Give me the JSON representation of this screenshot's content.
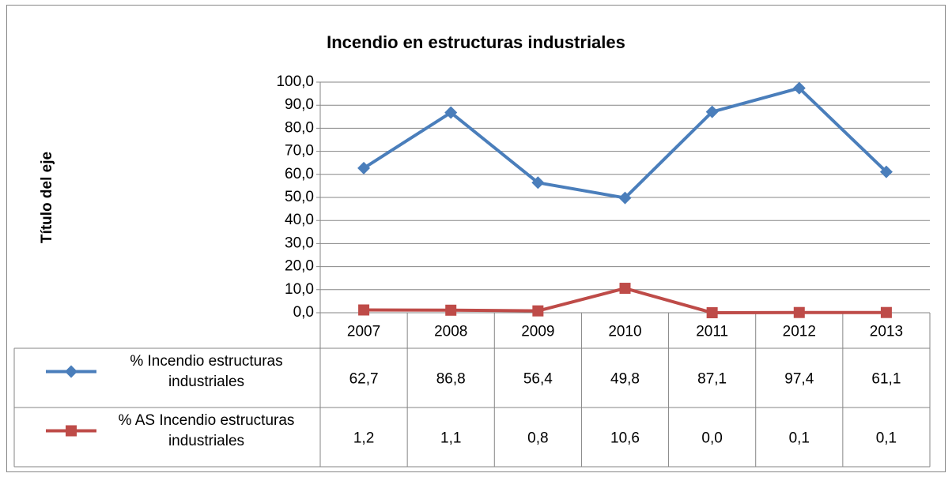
{
  "chart_data": {
    "type": "line",
    "title": "Incendio en estructuras industriales",
    "y_label": "Título del eje",
    "categories": [
      "2007",
      "2008",
      "2009",
      "2010",
      "2011",
      "2012",
      "2013"
    ],
    "series": [
      {
        "name": "% Incendio estructuras industriales",
        "color": "#4a7ebb",
        "marker": "diamond",
        "values": [
          62.7,
          86.8,
          56.4,
          49.8,
          87.1,
          97.4,
          61.1
        ],
        "value_labels": [
          "62,7",
          "86,8",
          "56,4",
          "49,8",
          "87,1",
          "97,4",
          "61,1"
        ]
      },
      {
        "name": "% AS Incendio estructuras industriales",
        "color": "#be4b48",
        "marker": "square",
        "values": [
          1.2,
          1.1,
          0.8,
          10.6,
          0.0,
          0.1,
          0.1
        ],
        "value_labels": [
          "1,2",
          "1,1",
          "0,8",
          "10,6",
          "0,0",
          "0,1",
          "0,1"
        ]
      }
    ],
    "ylim": [
      0,
      100
    ],
    "yticks": [
      {
        "value": 0,
        "label": "0,0"
      },
      {
        "value": 10,
        "label": "10,0"
      },
      {
        "value": 20,
        "label": "20,0"
      },
      {
        "value": 30,
        "label": "30,0"
      },
      {
        "value": 40,
        "label": "40,0"
      },
      {
        "value": 50,
        "label": "50,0"
      },
      {
        "value": 60,
        "label": "60,0"
      },
      {
        "value": 70,
        "label": "70,0"
      },
      {
        "value": 80,
        "label": "80,0"
      },
      {
        "value": 90,
        "label": "90,0"
      },
      {
        "value": 100,
        "label": "100,0"
      }
    ],
    "grid": true
  }
}
